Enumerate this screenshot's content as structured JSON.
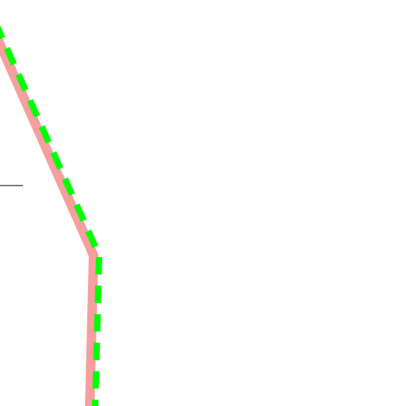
{
  "map": {
    "background_color": "#ffffff",
    "features": [
      {
        "name": "thin-road-line",
        "color": "#333333"
      },
      {
        "name": "route-base-line",
        "color": "#f79e9e"
      },
      {
        "name": "route-overlay-dashed-line",
        "color": "#00ff00",
        "style": "dashed"
      }
    ]
  }
}
